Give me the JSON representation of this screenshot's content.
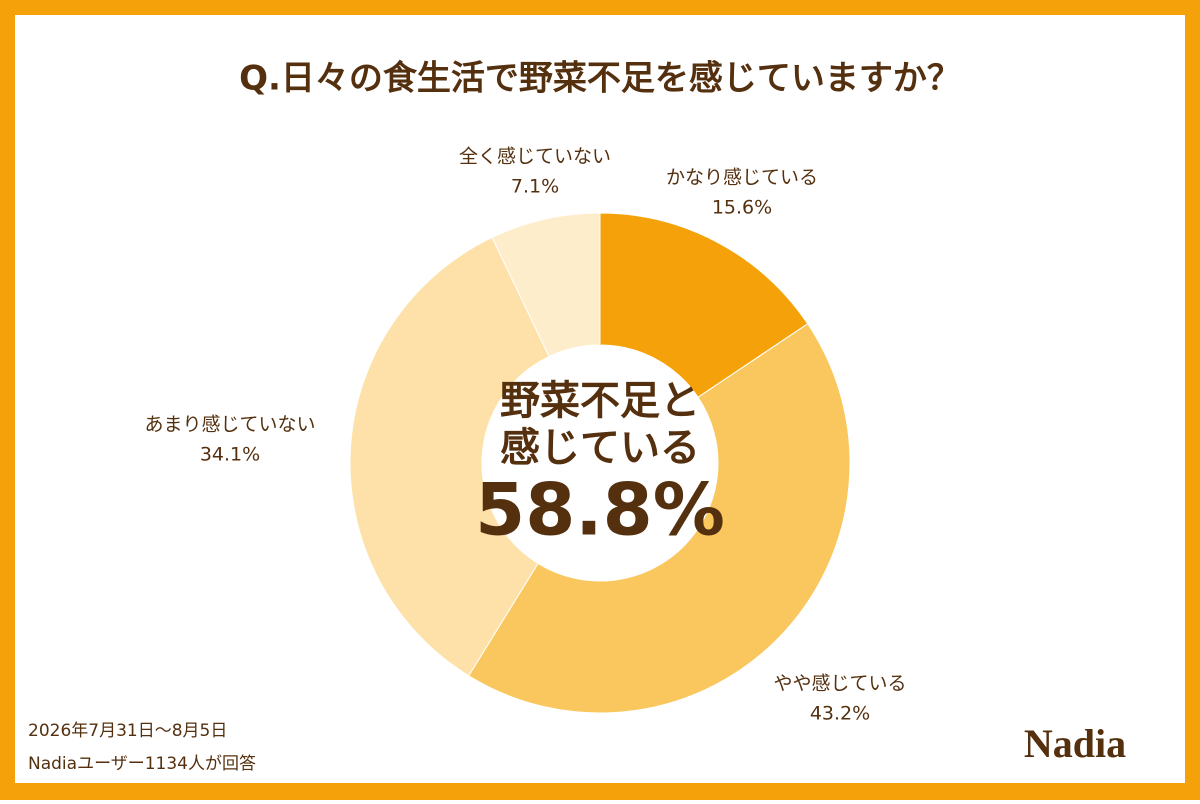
{
  "chart_data": {
    "type": "pie",
    "title": "Q.日々の食生活で野菜不足を感じていますか？",
    "categories": [
      "かなり感じている",
      "やや感じている",
      "あまり感じていない",
      "全く感じていない"
    ],
    "values": [
      15.6,
      43.2,
      34.1,
      7.1
    ],
    "value_labels": [
      "15.6%",
      "43.2%",
      "34.1%",
      "7.1%"
    ],
    "colors": [
      "#f5a20a",
      "#f9c75d",
      "#fde1a8",
      "#fdedcb"
    ],
    "center_lines": [
      "野菜不足と",
      "感じている"
    ],
    "center_value": "58.8%",
    "footnotes": [
      "2026年7月31日〜8月5日",
      "Nadiaユーザー1134人が回答"
    ],
    "logo": "Nadia"
  }
}
